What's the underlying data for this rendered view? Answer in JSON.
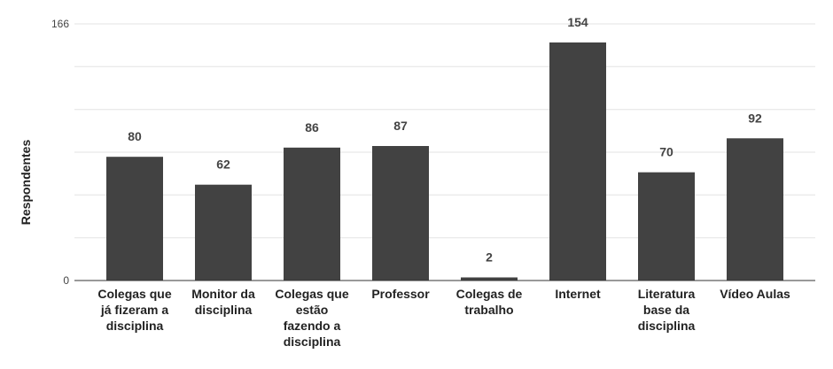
{
  "chart_data": {
    "type": "bar",
    "title": "",
    "xlabel": "",
    "ylabel": "Respondentes",
    "ylim": [
      0,
      166
    ],
    "y_ticks": [
      0,
      166
    ],
    "grid": true,
    "legend": "none",
    "bar_color": "#424242",
    "categories": [
      "Colegas que já fizeram a disciplina",
      "Monitor da disciplina",
      "Colegas que estão fazendo a disciplina",
      "Professor",
      "Colegas de trabalho",
      "Internet",
      "Literatura base da disciplina",
      "Vídeo Aulas"
    ],
    "category_label_lines": [
      [
        "Colegas que",
        "já fizeram a",
        "disciplina"
      ],
      [
        "Monitor da",
        "disciplina"
      ],
      [
        "Colegas que",
        "estão",
        "fazendo a",
        "disciplina"
      ],
      [
        "Professor"
      ],
      [
        "Colegas de",
        "trabalho"
      ],
      [
        "Internet"
      ],
      [
        "Literatura",
        "base da",
        "disciplina"
      ],
      [
        "Vídeo Aulas"
      ]
    ],
    "values": [
      80,
      62,
      86,
      87,
      2,
      154,
      70,
      92
    ]
  }
}
